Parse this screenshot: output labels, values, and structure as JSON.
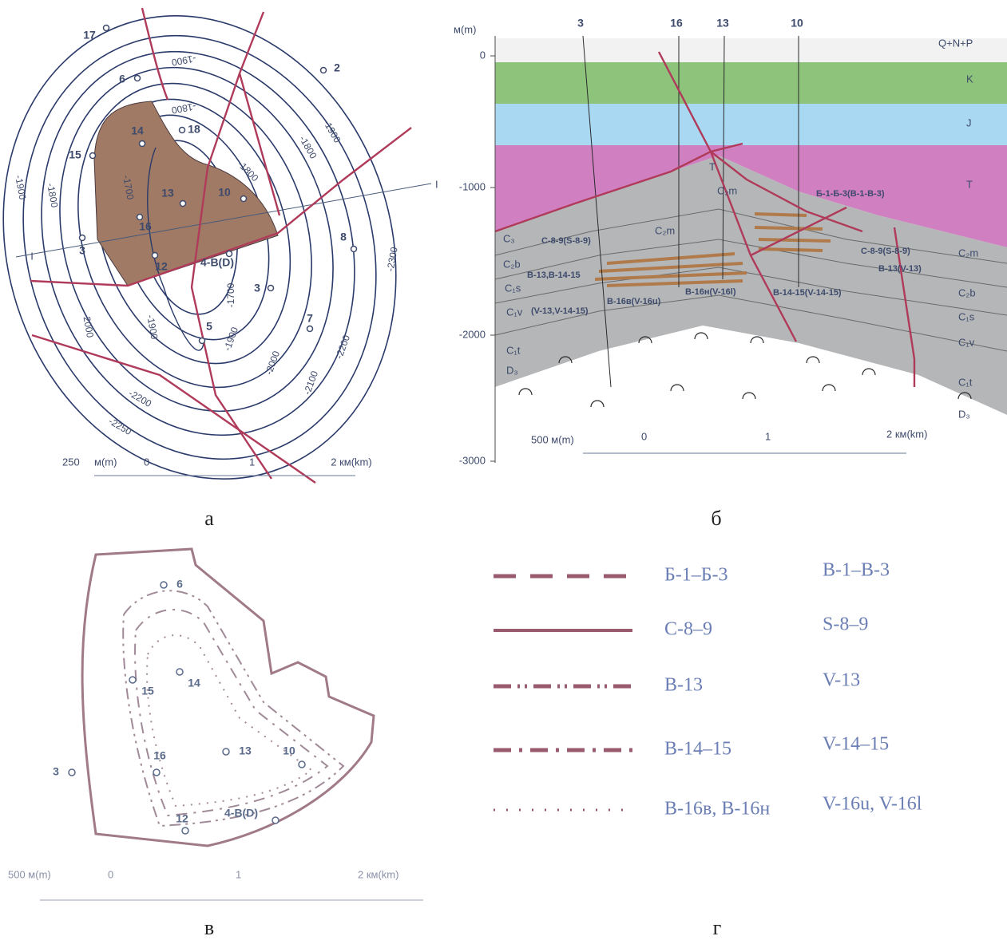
{
  "panel_a": {
    "label": "а",
    "contour_labels": [
      "-1900",
      "-1800",
      "-1900",
      "-1800",
      "-1800",
      "-1700",
      "-1700",
      "-1900",
      "-1800",
      "2000",
      "-1900",
      "-1900",
      "-2000",
      "-2100",
      "-2200",
      "-2300",
      "-2200",
      "-2250"
    ],
    "wells": [
      "17",
      "2",
      "6",
      "18",
      "14",
      "15",
      "13",
      "10",
      "16",
      "3",
      "12",
      "4-B(D)",
      "8",
      "3",
      "7",
      "5"
    ],
    "section_ends": [
      "I",
      "I"
    ],
    "scale": [
      "250",
      "м(m)",
      "0",
      "1",
      "2 км(km)"
    ]
  },
  "panel_b": {
    "label": "б",
    "depth_unit": "м(m)",
    "depth_ticks": [
      "0",
      "-1000",
      "-2000",
      "-3000"
    ],
    "wells": [
      "3",
      "16",
      "13",
      "10"
    ],
    "strata": [
      "Q+N+P",
      "K",
      "J",
      "T",
      "T",
      "C₂m",
      "C₂m",
      "C₃",
      "C₂b",
      "C₁s",
      "C₁v",
      "C₁t",
      "D₃",
      "C₂m",
      "C₂b",
      "C₁s",
      "C₁v",
      "C₁t",
      "D₃"
    ],
    "horizons": [
      "Б-1-Б-3(B-1-B-3)",
      "C-8-9(S-8-9)",
      "C-8-9(S-8-9)",
      "B-13(V-13)",
      "B-13,B-14-15",
      "(V-13,V-14-15)",
      "B-16в(V-16u)",
      "B-16н(V-16l)",
      "B-14-15(V-14-15)"
    ],
    "scale": [
      "500 м(m)",
      "0",
      "1",
      "2 км(km)"
    ]
  },
  "panel_c": {
    "label": "в",
    "wells": [
      "6",
      "15",
      "14",
      "16",
      "13",
      "10",
      "3",
      "12",
      "4-B(D)"
    ],
    "scale": [
      "500 м(m)",
      "0",
      "1",
      "2 км(km)"
    ]
  },
  "legend": {
    "label": "г",
    "rows": [
      {
        "ru": "Б-1–Б-3",
        "en": "B-1–B-3"
      },
      {
        "ru": "С-8–9",
        "en": "S-8–9"
      },
      {
        "ru": "В-13",
        "en": "V-13"
      },
      {
        "ru": "В-14–15",
        "en": "V-14–15"
      },
      {
        "ru": "В-16в,  В-16н",
        "en": "V-16u,  V-16l"
      }
    ]
  }
}
